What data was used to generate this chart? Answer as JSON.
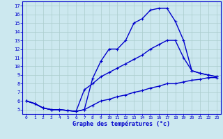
{
  "title": "Graphe des températures (°c)",
  "bg_color": "#cce8ef",
  "grid_color": "#aacccc",
  "line_color": "#0000cc",
  "line_width": 1.0,
  "marker": "+",
  "marker_size": 3,
  "xlim": [
    -0.5,
    23.5
  ],
  "ylim": [
    4.5,
    17.5
  ],
  "xticks": [
    0,
    1,
    2,
    3,
    4,
    5,
    6,
    7,
    8,
    9,
    10,
    11,
    12,
    13,
    14,
    15,
    16,
    17,
    18,
    19,
    20,
    21,
    22,
    23
  ],
  "yticks": [
    5,
    6,
    7,
    8,
    9,
    10,
    11,
    12,
    13,
    14,
    15,
    16,
    17
  ],
  "curve1_x": [
    0,
    1,
    2,
    3,
    4,
    5,
    6,
    7,
    8,
    9,
    10,
    11,
    12,
    13,
    14,
    15,
    16,
    17,
    18,
    19,
    20,
    21,
    22,
    23
  ],
  "curve1_y": [
    6.0,
    5.7,
    5.2,
    5.0,
    5.0,
    4.9,
    4.8,
    5.0,
    8.6,
    10.6,
    12.0,
    12.0,
    13.0,
    15.0,
    15.5,
    16.5,
    16.7,
    16.7,
    15.2,
    13.0,
    9.5,
    9.2,
    9.0,
    8.8
  ],
  "curve2_x": [
    0,
    1,
    2,
    3,
    4,
    5,
    6,
    7,
    8,
    9,
    10,
    11,
    12,
    13,
    14,
    15,
    16,
    17,
    18,
    19,
    20,
    21,
    22,
    23
  ],
  "curve2_y": [
    6.0,
    5.7,
    5.2,
    5.0,
    5.0,
    4.9,
    4.8,
    7.3,
    8.0,
    8.8,
    9.3,
    9.8,
    10.3,
    10.8,
    11.3,
    12.0,
    12.5,
    13.0,
    13.0,
    11.0,
    9.5,
    9.2,
    9.0,
    8.8
  ],
  "curve3_x": [
    0,
    1,
    2,
    3,
    4,
    5,
    6,
    7,
    8,
    9,
    10,
    11,
    12,
    13,
    14,
    15,
    16,
    17,
    18,
    19,
    20,
    21,
    22,
    23
  ],
  "curve3_y": [
    6.0,
    5.7,
    5.2,
    5.0,
    5.0,
    4.9,
    4.8,
    5.0,
    5.5,
    6.0,
    6.2,
    6.5,
    6.7,
    7.0,
    7.2,
    7.5,
    7.7,
    8.0,
    8.0,
    8.2,
    8.4,
    8.5,
    8.7,
    8.7
  ]
}
